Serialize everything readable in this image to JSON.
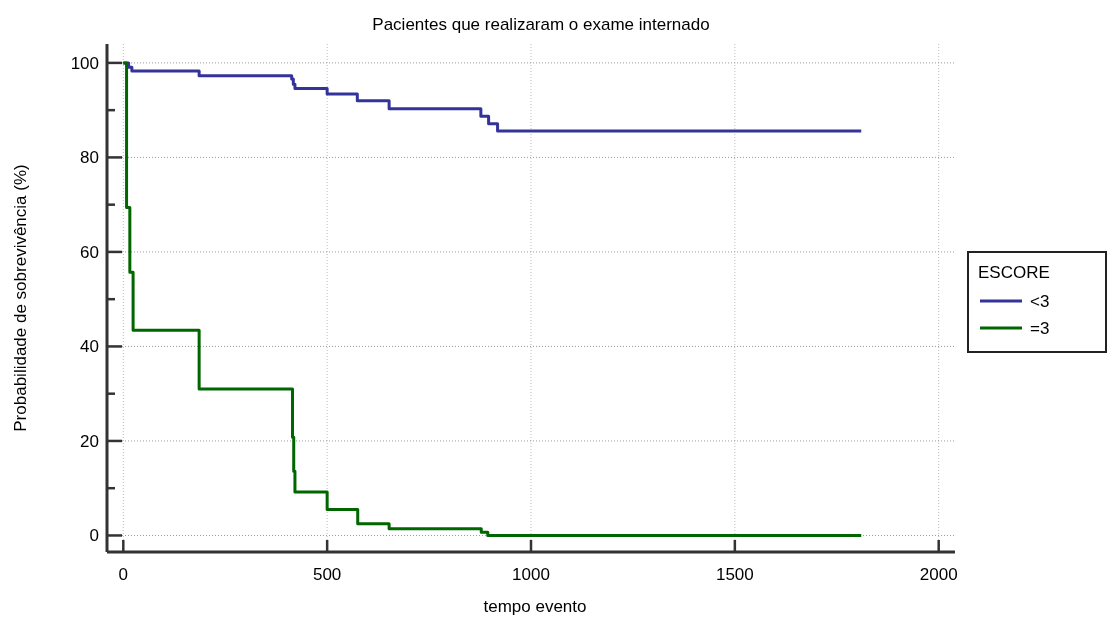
{
  "chart_data": {
    "type": "step",
    "title": "Pacientes que realizaram o exame internado",
    "xlabel": "tempo evento",
    "ylabel": "Probabilidade de sobrevivência (%)",
    "legend_title": "ESCORE",
    "legend": "right",
    "grid": true,
    "line_style": "solid",
    "xlim": [
      -40,
      2040
    ],
    "ylim": [
      -3.5,
      104
    ],
    "xticks": [
      0,
      500,
      1000,
      1500,
      2000
    ],
    "yticks": [
      0,
      {
        "value": 10,
        "label": null
      },
      20,
      {
        "value": 30,
        "label": null
      },
      40,
      {
        "value": 50,
        "label": null
      },
      60,
      {
        "value": 70,
        "label": null
      },
      80,
      {
        "value": 90,
        "label": null
      },
      100
    ],
    "series": [
      {
        "name": "<3",
        "color": "#333399",
        "x": [
          0,
          13,
          21,
          186,
          413,
          417,
          421,
          500,
          574,
          652,
          877,
          896,
          918,
          1810
        ],
        "values": [
          100,
          99.1,
          98.3,
          97.3,
          96.6,
          95.5,
          94.6,
          93.4,
          92.0,
          90.3,
          88.7,
          87.1,
          85.6,
          85.6
        ]
      },
      {
        "name": "=3",
        "color": "#006600",
        "x": [
          0,
          8,
          16,
          24,
          186,
          415,
          418,
          421,
          500,
          575,
          652,
          878,
          894,
          1810
        ],
        "values": [
          100,
          69.4,
          55.7,
          43.4,
          31.0,
          20.8,
          13.6,
          9.2,
          5.5,
          2.5,
          1.4,
          0.7,
          0,
          0
        ]
      }
    ]
  }
}
